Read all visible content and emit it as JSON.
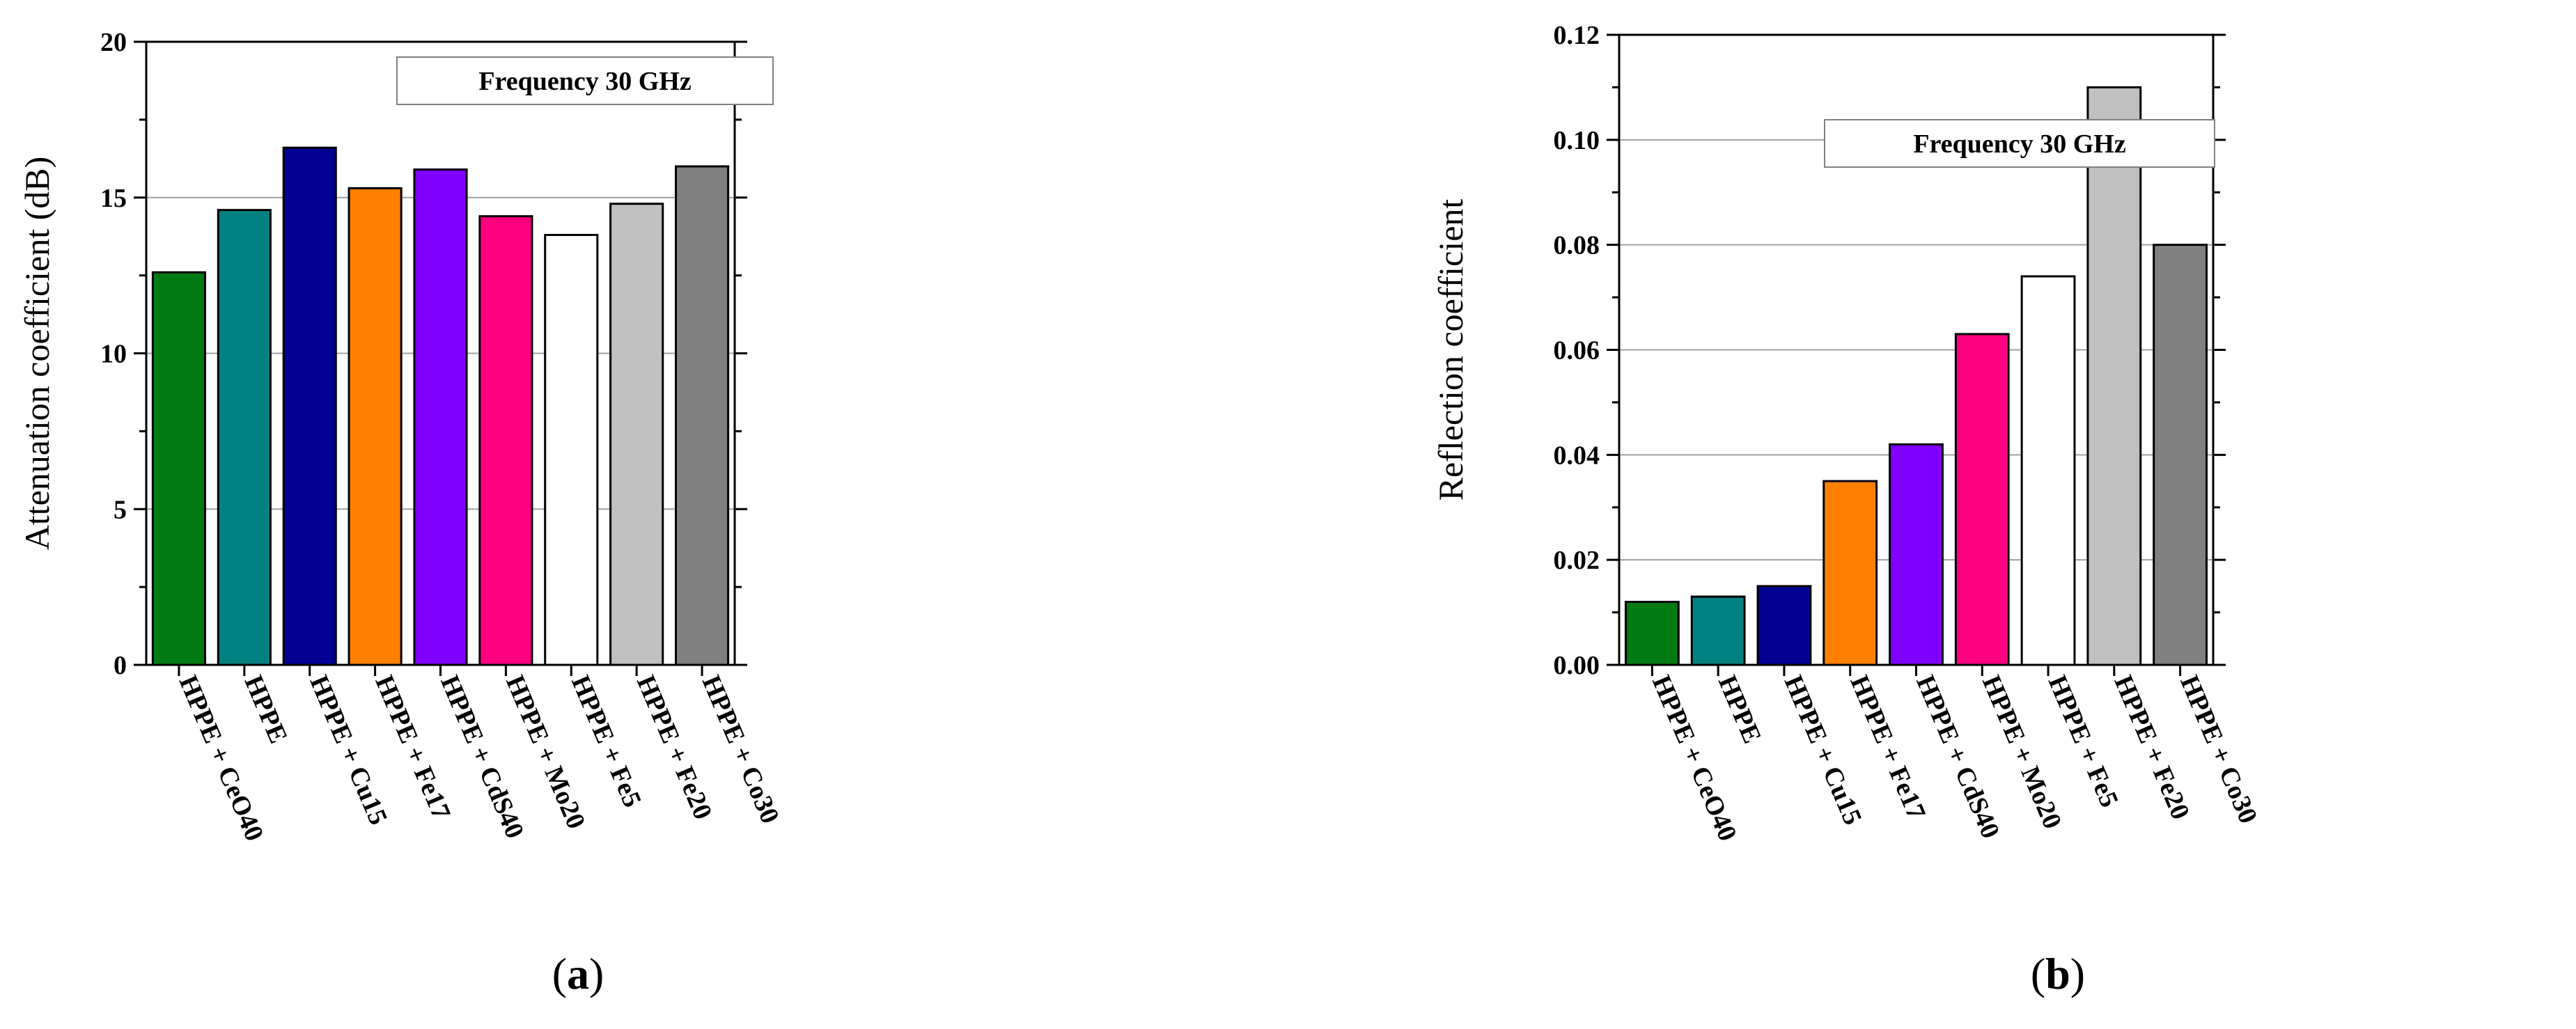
{
  "chart_data": [
    {
      "type": "bar",
      "panel_label": "a",
      "title": "",
      "annotation": "Frequency 30 GHz",
      "xlabel": "",
      "ylabel": "Attenuation coefficient (dB)",
      "ylim": [
        0,
        20
      ],
      "yticks": [
        0,
        5,
        10,
        15,
        20
      ],
      "grid": true,
      "categories": [
        "HPPE + CeO40",
        "HPPE",
        "HPPE + Cu15",
        "HPPE + Fe17",
        "HPPE + CdS40",
        "HPPE + Mo20",
        "HPPE + Fe5",
        "HPPE + Fe20",
        "HPPE + Co30"
      ],
      "values": [
        12.6,
        14.6,
        16.6,
        15.3,
        15.9,
        14.4,
        13.8,
        14.8,
        16.0
      ],
      "colors": [
        "#007a12",
        "#008080",
        "#000092",
        "#ff8000",
        "#8000ff",
        "#ff0080",
        "#ffffff",
        "#c0c0c0",
        "#808080"
      ]
    },
    {
      "type": "bar",
      "panel_label": "b",
      "title": "",
      "annotation": "Frequency 30 GHz",
      "xlabel": "",
      "ylabel": "Reflection coefficient",
      "ylim": [
        0,
        0.12
      ],
      "yticks": [
        "0.00",
        "0.02",
        "0.04",
        "0.06",
        "0.08",
        "0.10",
        "0.12"
      ],
      "grid": true,
      "categories": [
        "HPPE + CeO40",
        "HPPE",
        "HPPE + Cu15",
        "HPPE + Fe17",
        "HPPE + CdS40",
        "HPPE + Mo20",
        "HPPE + Fe5",
        "HPPE + Fe20",
        "HPPE + Co30"
      ],
      "values": [
        0.012,
        0.013,
        0.015,
        0.035,
        0.042,
        0.063,
        0.074,
        0.11,
        0.08
      ],
      "colors": [
        "#007a12",
        "#008080",
        "#000092",
        "#ff8000",
        "#8000ff",
        "#ff0080",
        "#ffffff",
        "#c0c0c0",
        "#808080"
      ]
    }
  ]
}
